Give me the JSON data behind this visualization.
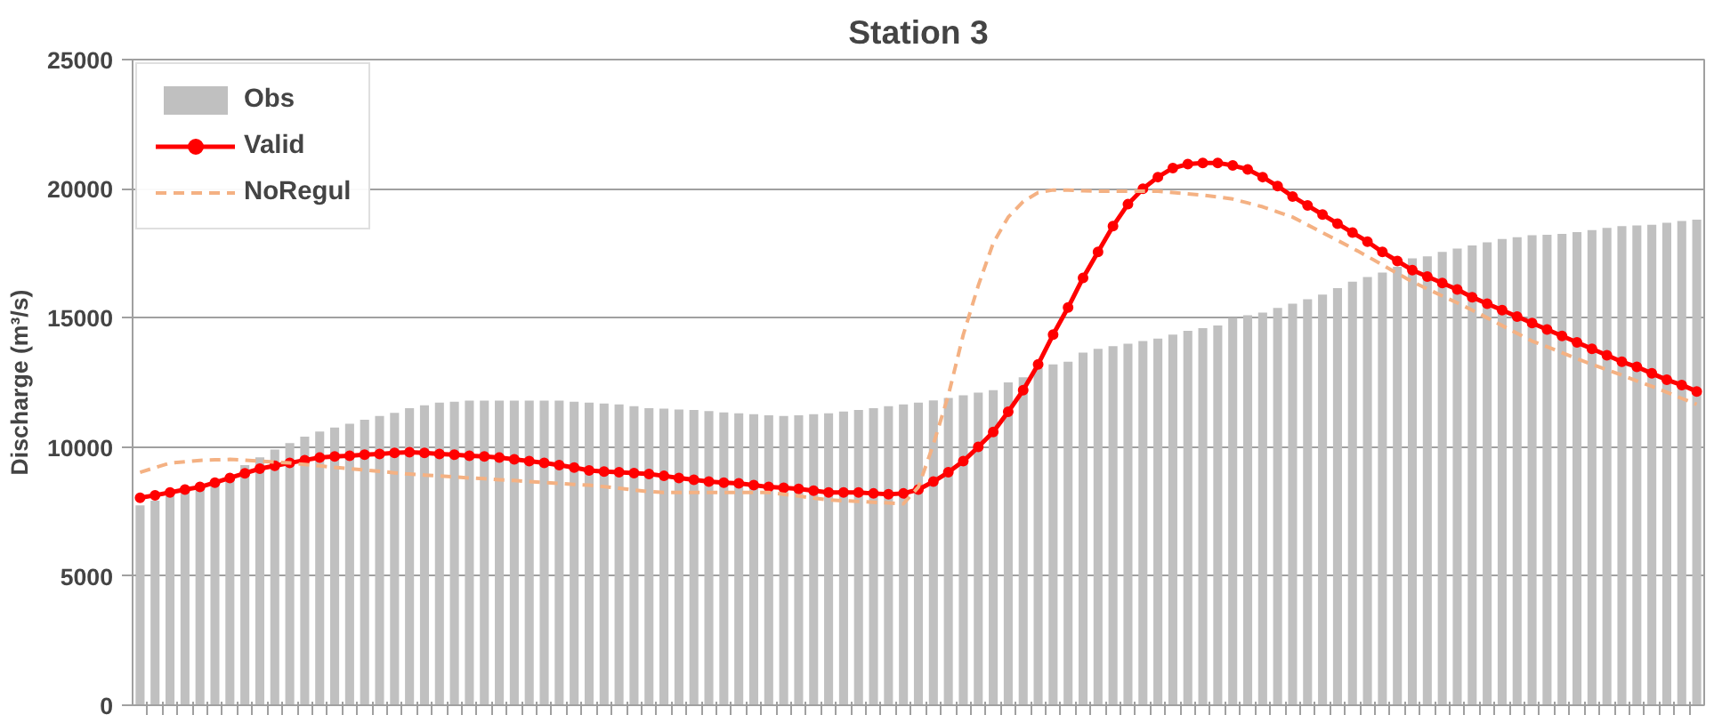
{
  "chart_data": {
    "type": "bar",
    "title": "Station 3",
    "ylabel": "Discharge (m³/s)",
    "categories": [
      null,
      null,
      null,
      null,
      null,
      null,
      null,
      null,
      null,
      null,
      null,
      null,
      null,
      null,
      null,
      null,
      null,
      null,
      null,
      null,
      null,
      null,
      null,
      null,
      null,
      null,
      null,
      null,
      null,
      null,
      null,
      null,
      null,
      null,
      null,
      null,
      null,
      null,
      null,
      null,
      null,
      null,
      null,
      null,
      null,
      null,
      null,
      null,
      null,
      null,
      null,
      null,
      null,
      null,
      null,
      null,
      null,
      null,
      null,
      null,
      null,
      null,
      null,
      null,
      null,
      null,
      null,
      null,
      null,
      null,
      null,
      null,
      null,
      null,
      null,
      null,
      null,
      null,
      null,
      null,
      null,
      null,
      null,
      null,
      null,
      null,
      null,
      null,
      null,
      null,
      null,
      null,
      null,
      null,
      null,
      null,
      null,
      null,
      null,
      null,
      null,
      null,
      null,
      null,
      null
    ],
    "ylim": [
      0,
      25000
    ],
    "yticks": [
      0,
      5000,
      10000,
      15000,
      20000,
      25000
    ],
    "grid": "y",
    "legend": "top left",
    "tick_labels": "y",
    "series": [
      {
        "name": "Obs",
        "color": "#c0c0c0",
        "values": [
          7740,
          7920,
          8100,
          8270,
          8450,
          8630,
          8800,
          9300,
          9600,
          9900,
          10150,
          10400,
          10600,
          10750,
          10900,
          11050,
          11200,
          11320,
          11500,
          11610,
          11720,
          11750,
          11790,
          11790,
          11790,
          11790,
          11790,
          11790,
          11790,
          11750,
          11720,
          11680,
          11650,
          11580,
          11500,
          11480,
          11450,
          11430,
          11390,
          11340,
          11300,
          11270,
          11230,
          11200,
          11230,
          11270,
          11300,
          11370,
          11430,
          11500,
          11580,
          11650,
          11720,
          11800,
          11900,
          12000,
          12100,
          12200,
          12500,
          12700,
          13050,
          13200,
          13300,
          13650,
          13800,
          13900,
          14000,
          14100,
          14200,
          14350,
          14500,
          14600,
          14700,
          15000,
          15100,
          15200,
          15380,
          15550,
          15720,
          15900,
          16150,
          16400,
          16580,
          16750,
          16980,
          17300,
          17380,
          17550,
          17680,
          17800,
          17920,
          18050,
          18120,
          18200,
          18220,
          18250,
          18320,
          18400,
          18480,
          18550,
          18580,
          18600,
          18680,
          18750,
          18800
        ]
      },
      {
        "name": "Valid",
        "type": "line",
        "color": "#ff0000",
        "marker": "circle",
        "line_style": "solid",
        "values": [
          8030,
          8130,
          8240,
          8350,
          8450,
          8620,
          8800,
          8980,
          9160,
          9270,
          9380,
          9490,
          9590,
          9630,
          9660,
          9700,
          9730,
          9770,
          9800,
          9770,
          9730,
          9700,
          9660,
          9630,
          9590,
          9520,
          9450,
          9380,
          9300,
          9200,
          9090,
          9050,
          9020,
          8990,
          8950,
          8880,
          8800,
          8730,
          8660,
          8620,
          8590,
          8520,
          8450,
          8420,
          8380,
          8310,
          8240,
          8240,
          8240,
          8200,
          8170,
          8200,
          8350,
          8660,
          9020,
          9450,
          10000,
          10580,
          11360,
          12200,
          13200,
          14350,
          15400,
          16550,
          17550,
          18550,
          19400,
          20000,
          20450,
          20800,
          20950,
          21000,
          21000,
          20900,
          20750,
          20450,
          20100,
          19700,
          19350,
          19000,
          18650,
          18300,
          17950,
          17550,
          17200,
          16850,
          16600,
          16350,
          16100,
          15800,
          15550,
          15300,
          15050,
          14800,
          14550,
          14300,
          14050,
          13800,
          13550,
          13300,
          13100,
          12850,
          12600,
          12400,
          12150
        ]
      },
      {
        "name": "NoRegul",
        "type": "line",
        "color": "#f4b183",
        "marker": "none",
        "line_style": "dashed",
        "values": [
          9020,
          9200,
          9380,
          9430,
          9480,
          9500,
          9520,
          9490,
          9450,
          9420,
          9380,
          9320,
          9270,
          9210,
          9160,
          9110,
          9060,
          9000,
          8950,
          8910,
          8880,
          8840,
          8800,
          8770,
          8730,
          8700,
          8660,
          8620,
          8590,
          8550,
          8520,
          8460,
          8400,
          8330,
          8270,
          8240,
          8240,
          8240,
          8240,
          8240,
          8240,
          8240,
          8240,
          8170,
          8100,
          8020,
          7950,
          7920,
          7890,
          7860,
          7830,
          7800,
          8450,
          10100,
          12000,
          14350,
          16250,
          17900,
          18900,
          19500,
          19850,
          19950,
          19950,
          19920,
          19900,
          19900,
          19900,
          19900,
          19900,
          19850,
          19800,
          19750,
          19680,
          19600,
          19450,
          19300,
          19100,
          18900,
          18600,
          18300,
          18000,
          17700,
          17380,
          17050,
          16720,
          16400,
          16120,
          15850,
          15580,
          15300,
          15000,
          14700,
          14400,
          14100,
          13880,
          13650,
          13420,
          13200,
          12990,
          12780,
          12560,
          12350,
          12120,
          11880,
          11650
        ]
      }
    ]
  }
}
